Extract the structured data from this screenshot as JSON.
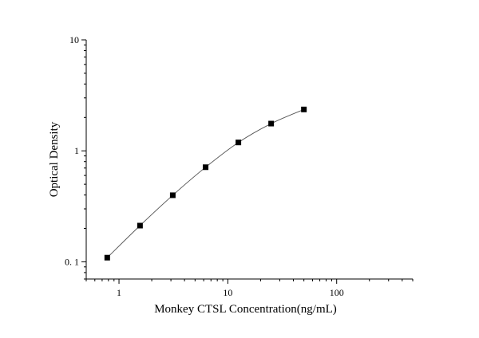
{
  "chart_data": {
    "type": "scatter",
    "xlabel": "Monkey CTSL  Concentration(ng/mL)",
    "ylabel": "Optical Density",
    "x_scale": "log",
    "y_scale": "log",
    "xlim": [
      0.5,
      500
    ],
    "ylim": [
      0.07,
      10
    ],
    "x_ticks": [
      {
        "value": 1,
        "label": "1"
      },
      {
        "value": 10,
        "label": "10"
      },
      {
        "value": 100,
        "label": "100"
      }
    ],
    "y_ticks": [
      {
        "value": 0.1,
        "label": "0. 1"
      },
      {
        "value": 1,
        "label": "1"
      },
      {
        "value": 10,
        "label": "10"
      }
    ],
    "grid": false,
    "fit_curve": true,
    "series": [
      {
        "x": [
          0.78,
          1.56,
          3.12,
          6.25,
          12.5,
          25,
          50
        ],
        "y": [
          0.109,
          0.212,
          0.398,
          0.712,
          1.19,
          1.76,
          2.36
        ]
      }
    ]
  }
}
